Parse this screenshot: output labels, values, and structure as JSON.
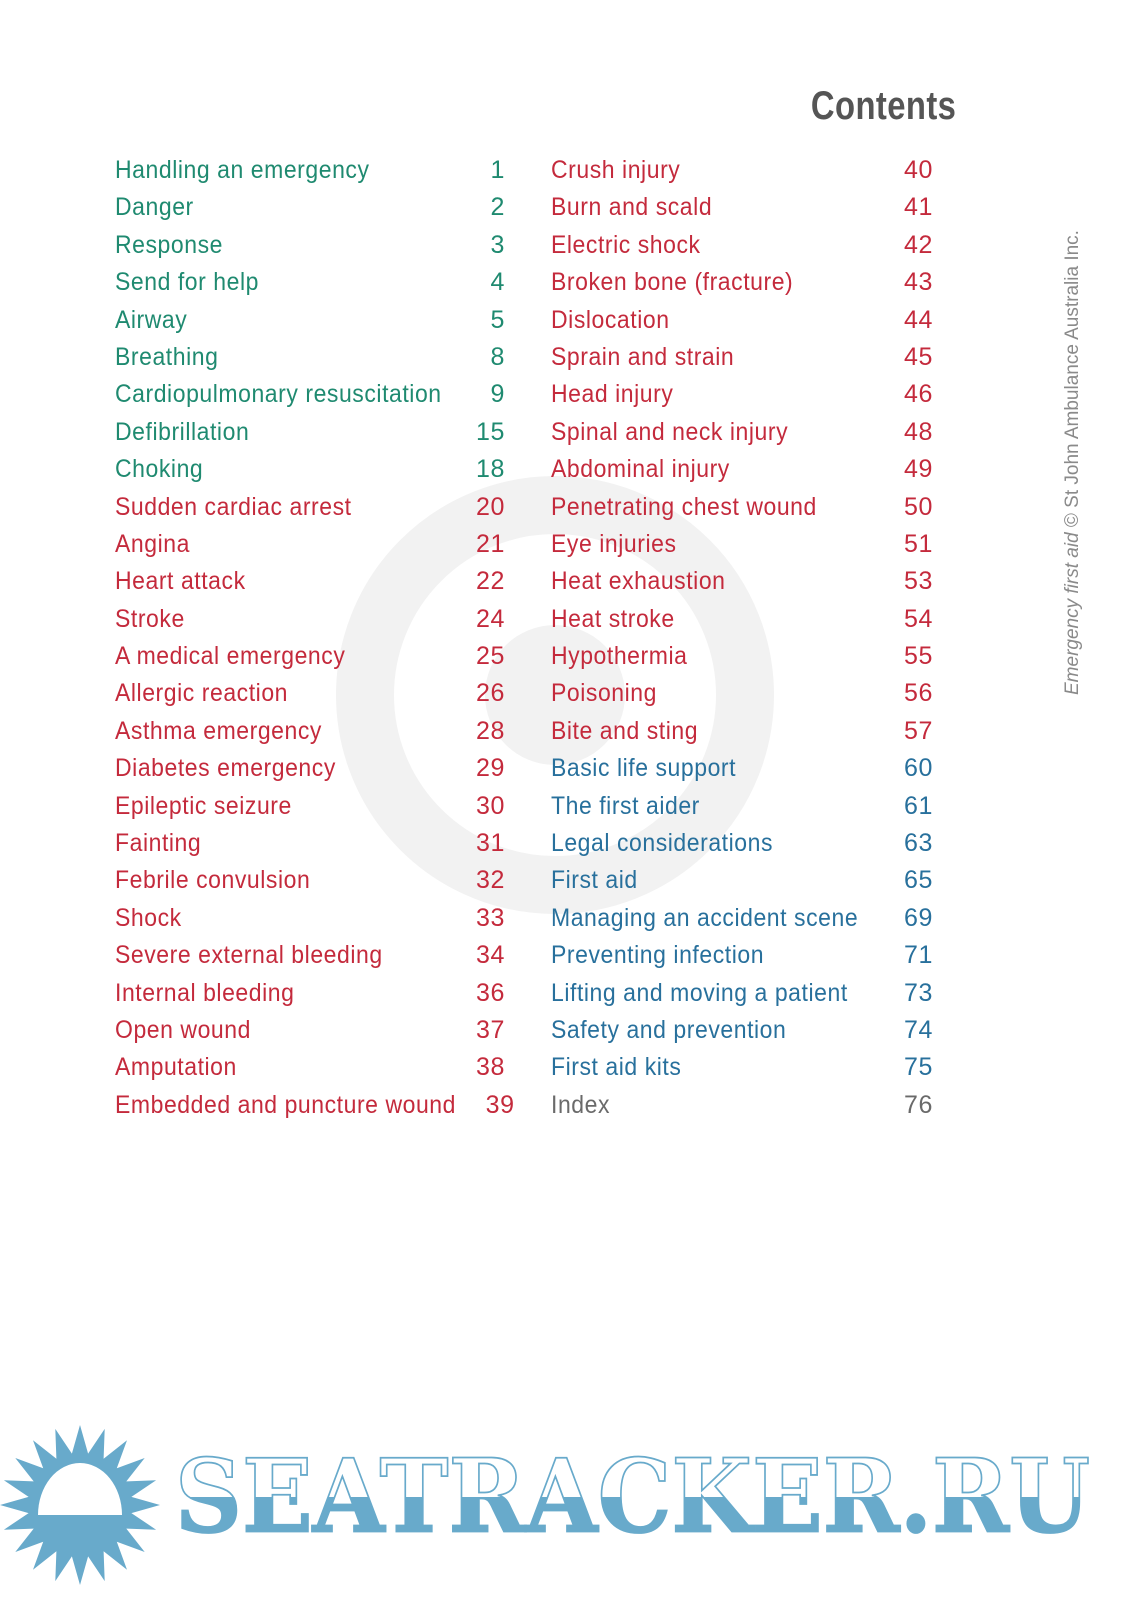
{
  "title": "Contents",
  "colors": {
    "green": "#1f8a70",
    "red": "#c42a3c",
    "blue": "#28709c",
    "grey": "#6a6a6a",
    "watermark": "#68aacb"
  },
  "left_column": [
    {
      "label": "Handling an emergency",
      "page": "1",
      "color": "green"
    },
    {
      "label": "Danger",
      "page": "2",
      "color": "green"
    },
    {
      "label": "Response",
      "page": "3",
      "color": "green"
    },
    {
      "label": "Send for help",
      "page": "4",
      "color": "green"
    },
    {
      "label": "Airway",
      "page": "5",
      "color": "green"
    },
    {
      "label": "Breathing",
      "page": "8",
      "color": "green"
    },
    {
      "label": "Cardiopulmonary resuscitation",
      "page": "9",
      "color": "green"
    },
    {
      "label": "Defibrillation",
      "page": "15",
      "color": "green"
    },
    {
      "label": "Choking",
      "page": "18",
      "color": "green"
    },
    {
      "label": "Sudden cardiac arrest",
      "page": "20",
      "color": "red"
    },
    {
      "label": "Angina",
      "page": "21",
      "color": "red"
    },
    {
      "label": "Heart attack",
      "page": "22",
      "color": "red"
    },
    {
      "label": "Stroke",
      "page": "24",
      "color": "red"
    },
    {
      "label": "A medical emergency",
      "page": "25",
      "color": "red"
    },
    {
      "label": "Allergic reaction",
      "page": "26",
      "color": "red"
    },
    {
      "label": "Asthma emergency",
      "page": "28",
      "color": "red"
    },
    {
      "label": "Diabetes emergency",
      "page": "29",
      "color": "red"
    },
    {
      "label": "Epileptic seizure",
      "page": "30",
      "color": "red"
    },
    {
      "label": "Fainting",
      "page": "31",
      "color": "red"
    },
    {
      "label": "Febrile convulsion",
      "page": "32",
      "color": "red"
    },
    {
      "label": "Shock",
      "page": "33",
      "color": "red"
    },
    {
      "label": "Severe external bleeding",
      "page": "34",
      "color": "red"
    },
    {
      "label": "Internal bleeding",
      "page": "36",
      "color": "red"
    },
    {
      "label": "Open wound",
      "page": "37",
      "color": "red"
    },
    {
      "label": "Amputation",
      "page": "38",
      "color": "red"
    },
    {
      "label": "Embedded and puncture wound",
      "page": "39",
      "color": "red"
    }
  ],
  "right_column": [
    {
      "label": "Crush injury",
      "page": "40",
      "color": "red"
    },
    {
      "label": "Burn and scald",
      "page": "41",
      "color": "red"
    },
    {
      "label": "Electric shock",
      "page": "42",
      "color": "red"
    },
    {
      "label": "Broken bone (fracture)",
      "page": "43",
      "color": "red"
    },
    {
      "label": "Dislocation",
      "page": "44",
      "color": "red"
    },
    {
      "label": "Sprain and strain",
      "page": "45",
      "color": "red"
    },
    {
      "label": "Head injury",
      "page": "46",
      "color": "red"
    },
    {
      "label": "Spinal and neck injury",
      "page": "48",
      "color": "red"
    },
    {
      "label": "Abdominal injury",
      "page": "49",
      "color": "red"
    },
    {
      "label": "Penetrating chest wound",
      "page": "50",
      "color": "red"
    },
    {
      "label": "Eye injuries",
      "page": "51",
      "color": "red"
    },
    {
      "label": "Heat exhaustion",
      "page": "53",
      "color": "red"
    },
    {
      "label": "Heat stroke",
      "page": "54",
      "color": "red"
    },
    {
      "label": "Hypothermia",
      "page": "55",
      "color": "red"
    },
    {
      "label": "Poisoning",
      "page": "56",
      "color": "red"
    },
    {
      "label": "Bite and sting",
      "page": "57",
      "color": "red"
    },
    {
      "label": "Basic life support",
      "page": "60",
      "color": "blue"
    },
    {
      "label": "The first aider",
      "page": "61",
      "color": "blue"
    },
    {
      "label": "Legal considerations",
      "page": "63",
      "color": "blue"
    },
    {
      "label": "First aid",
      "page": "65",
      "color": "blue"
    },
    {
      "label": "Managing an accident scene",
      "page": "69",
      "color": "blue"
    },
    {
      "label": "Preventing infection",
      "page": "71",
      "color": "blue"
    },
    {
      "label": "Lifting and moving a patient",
      "page": "73",
      "color": "blue"
    },
    {
      "label": "Safety and prevention",
      "page": "74",
      "color": "blue"
    },
    {
      "label": "First aid kits",
      "page": "75",
      "color": "blue"
    },
    {
      "label": "Index",
      "page": "76",
      "color": "grey"
    }
  ],
  "side_note": {
    "italic": "Emergency first aid",
    "rest": " © St John Ambulance Australia Inc."
  },
  "watermark_logo": "SEATRACKER.RU"
}
